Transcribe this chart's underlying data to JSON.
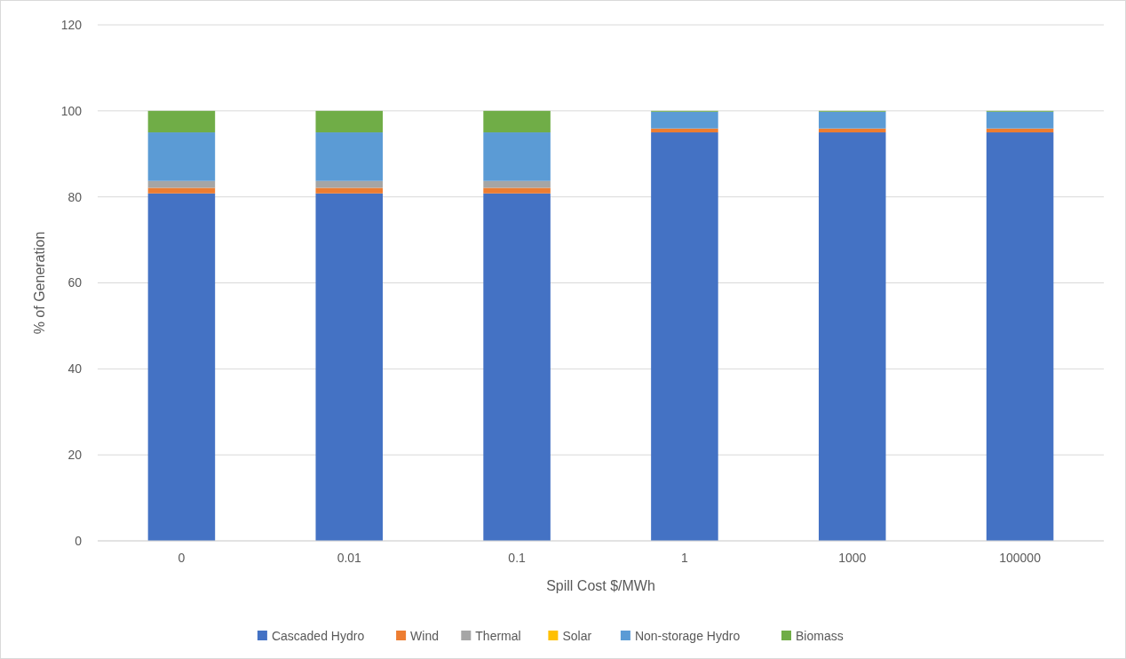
{
  "chart_data": {
    "type": "bar",
    "stacked": true,
    "xlabel": "Spill Cost $/MWh",
    "ylabel": "% of Generation",
    "categories": [
      "0",
      "0.01",
      "0.1",
      "1",
      "1000",
      "100000"
    ],
    "series": [
      {
        "name": "Cascaded Hydro",
        "color": "#4472c4",
        "values": [
          80.8,
          80.8,
          80.8,
          95.0,
          95.0,
          95.0
        ]
      },
      {
        "name": "Wind",
        "color": "#ed7d31",
        "values": [
          1.3,
          1.3,
          1.3,
          0.9,
          0.9,
          0.9
        ]
      },
      {
        "name": "Thermal",
        "color": "#a5a5a5",
        "values": [
          1.6,
          1.6,
          1.6,
          0,
          0,
          0
        ]
      },
      {
        "name": "Solar",
        "color": "#ffc000",
        "values": [
          0,
          0,
          0,
          0,
          0,
          0
        ]
      },
      {
        "name": "Non-storage Hydro",
        "color": "#5b9bd5",
        "values": [
          11.3,
          11.3,
          11.3,
          3.9,
          3.9,
          3.9
        ]
      },
      {
        "name": "Biomass",
        "color": "#70ad47",
        "values": [
          5.0,
          5.0,
          5.0,
          0.2,
          0.2,
          0.2
        ]
      }
    ],
    "ylim": [
      0,
      120
    ],
    "yticks": [
      0,
      20,
      40,
      60,
      80,
      100,
      120
    ],
    "grid": "y",
    "legend": "bottom"
  }
}
